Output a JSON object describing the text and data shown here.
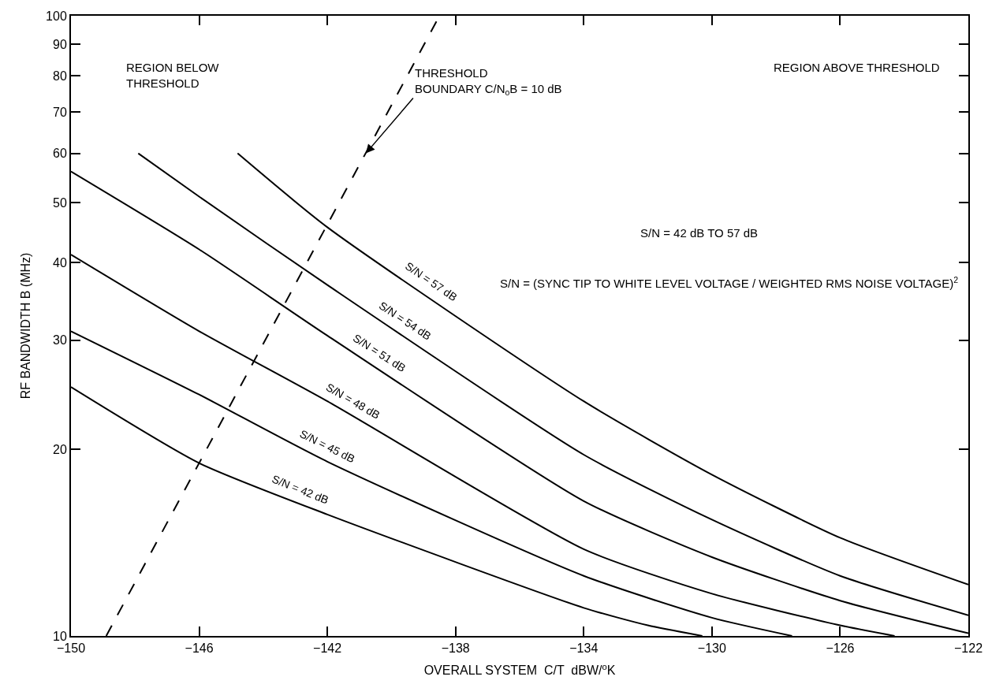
{
  "chart_data": {
    "type": "line",
    "xlabel": "OVERALL SYSTEM  C/T  dBW/$^{o}$K",
    "ylabel": "RF BANDWIDTH B (MHz)",
    "log": "y",
    "legend": false,
    "marker": "none",
    "line_style": "solid",
    "xlim": [
      -150,
      -122
    ],
    "xticks": [
      -150,
      -146,
      -142,
      -138,
      -134,
      -130,
      -126,
      -122
    ],
    "ylim": [
      10,
      100
    ],
    "yticks": [
      10,
      20,
      30,
      40,
      50,
      60,
      70,
      80,
      90,
      100
    ],
    "series": [
      {
        "name": "S/N = 57 dB",
        "color": "#000000",
        "x": [
          -144.8,
          -142,
          -134,
          -130,
          -126,
          -122
        ],
        "values": [
          60,
          45.6,
          23.9,
          18.2,
          14.4,
          12.1
        ]
      },
      {
        "name": "S/N = 54 dB",
        "color": "#000000",
        "x": [
          -147.9,
          -146,
          -142,
          -134,
          -130,
          -126,
          -122
        ],
        "values": [
          60,
          51.1,
          36.8,
          19.6,
          15.4,
          12.5,
          10.8
        ]
      },
      {
        "name": "S/N = 51 dB",
        "color": "#000000",
        "x": [
          -150,
          -146,
          -142,
          -134,
          -130,
          -126,
          -122
        ],
        "values": [
          56.1,
          42,
          30.5,
          16.5,
          13.4,
          11.4,
          10.1
        ]
      },
      {
        "name": "S/N = 48 dB",
        "color": "#000000",
        "x": [
          -150,
          -146,
          -142,
          -134,
          -130,
          -126,
          -124.3
        ],
        "values": [
          41.2,
          31,
          23.9,
          13.8,
          11.7,
          10.4,
          10
        ]
      },
      {
        "name": "S/N = 45 dB",
        "color": "#000000",
        "x": [
          -150,
          -146,
          -142,
          -134,
          -130,
          -127.5
        ],
        "values": [
          31,
          24.5,
          19.1,
          12.5,
          10.7,
          10
        ]
      },
      {
        "name": "S/N = 42 dB",
        "color": "#000000",
        "x": [
          -150,
          -146,
          -142,
          -134,
          -132,
          -130.3
        ],
        "values": [
          25.2,
          19,
          15.7,
          11.1,
          10.4,
          10
        ]
      },
      {
        "color": "#000000",
        "line_style": "dashed",
        "x": [
          -148.9,
          -138.5
        ],
        "values": [
          10,
          100
        ]
      }
    ],
    "annotations": [
      "REGION BELOW\nTHRESHOLD",
      "REGION ABOVE THRESHOLD",
      {
        "text": "THRESHOLD\nBOUNDARY C/N$_{o}$B = 10 dB",
        "x": -140.8,
        "y": 60
      },
      "S/N = 42 dB TO 57 dB",
      "S/N = (SYNC TIP TO WHITE LEVEL VOLTAGE / WEIGHTED RMS NOISE VOLTAGE)$^{2}$"
    ]
  }
}
